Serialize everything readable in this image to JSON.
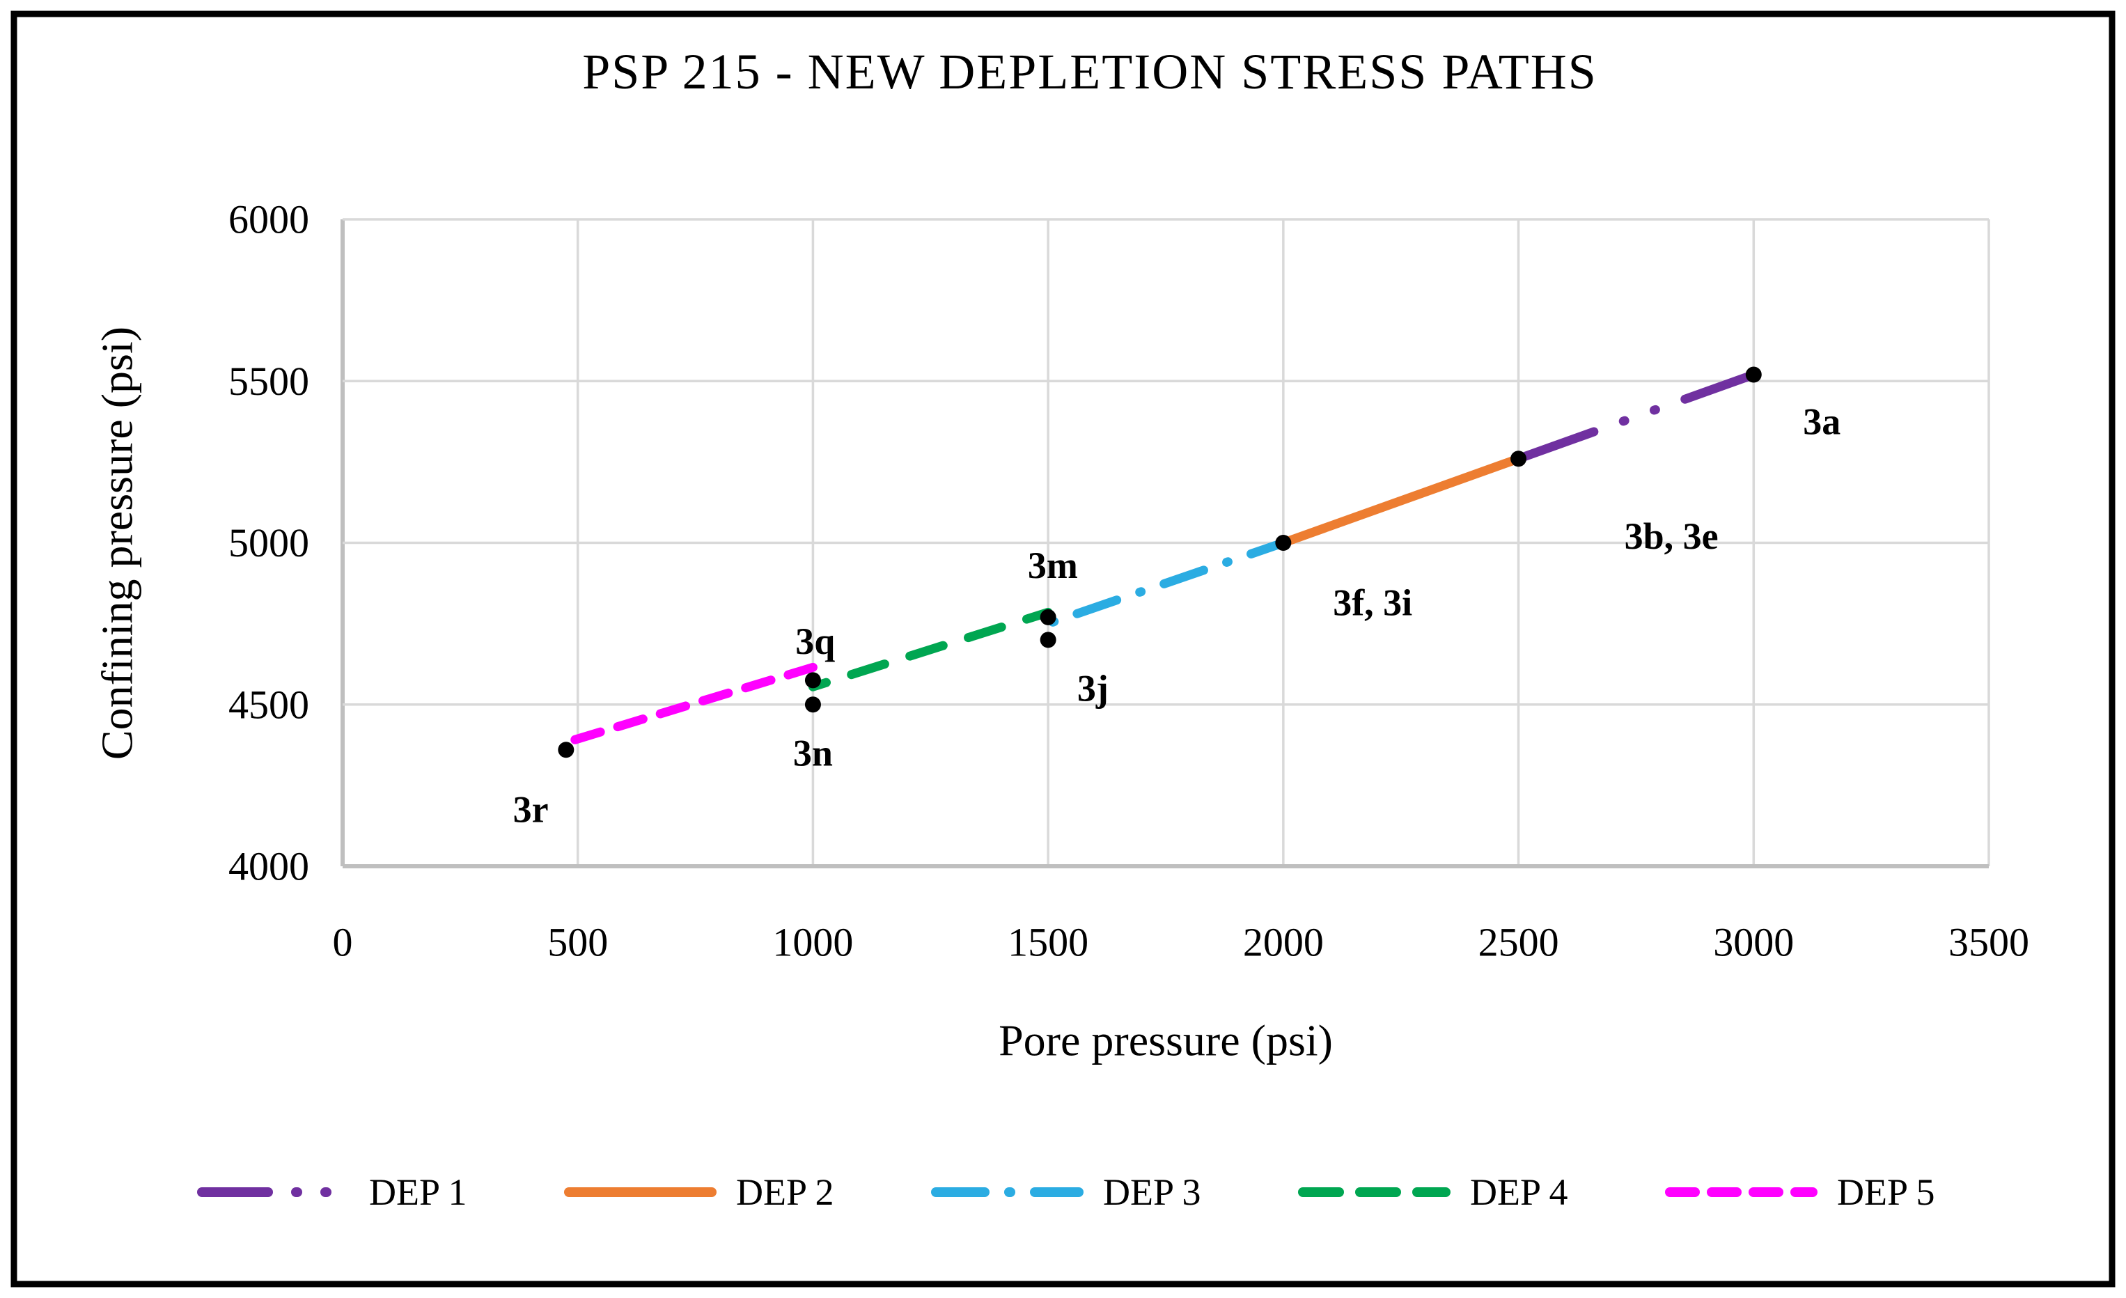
{
  "figure": {
    "background_color": "#FFFFFF",
    "frame_border_color": "#000000"
  },
  "chart_data": {
    "type": "line",
    "title": "PSP 215 - NEW DEPLETION STRESS PATHS",
    "xlabel": "Pore pressure (psi)",
    "ylabel": "Confining pressure (psi)",
    "xlim": [
      0,
      3500
    ],
    "ylim": [
      4000,
      6000
    ],
    "x_ticks": [
      0,
      500,
      1000,
      1500,
      2000,
      2500,
      3000,
      3500
    ],
    "y_ticks": [
      4000,
      4500,
      5000,
      5500,
      6000
    ],
    "grid": true,
    "grid_color": "#D9D9D9",
    "axis_line_color": "#BFBFBF",
    "marker_color": "#000000",
    "legend_position": "bottom",
    "series": [
      {
        "name": "DEP 1",
        "color": "#7030A0",
        "dash_style": "long-dash-dot-dot",
        "points": [
          [
            2500,
            5260
          ],
          [
            3000,
            5520
          ]
        ]
      },
      {
        "name": "DEP 2",
        "color": "#ED7D31",
        "dash_style": "solid",
        "points": [
          [
            2000,
            5000
          ],
          [
            2500,
            5260
          ]
        ]
      },
      {
        "name": "DEP 3",
        "color": "#2BACE2",
        "dash_style": "dash-dot",
        "points": [
          [
            1510,
            4755
          ],
          [
            2000,
            5000
          ]
        ]
      },
      {
        "name": "DEP 4",
        "color": "#00A651",
        "dash_style": "long-dash",
        "points": [
          [
            1000,
            4555
          ],
          [
            1500,
            4785
          ]
        ]
      },
      {
        "name": "DEP 5",
        "color": "#FF00FF",
        "dash_style": "short-dash",
        "points": [
          [
            480,
            4385
          ],
          [
            1000,
            4615
          ]
        ]
      }
    ],
    "point_markers": [
      {
        "label": "3a",
        "x": 3000,
        "y": 5520,
        "label_x": 3145,
        "label_y": 5375
      },
      {
        "label": "3b, 3e",
        "x": 2500,
        "y": 5260,
        "label_x": 2825,
        "label_y": 5020
      },
      {
        "label": "3f, 3i",
        "x": 2000,
        "y": 5000,
        "label_x": 2190,
        "label_y": 4815
      },
      {
        "label": "3m",
        "x": 1500,
        "y": 4770,
        "label_x": 1510,
        "label_y": 4930
      },
      {
        "label": "3j",
        "x": 1500,
        "y": 4700,
        "label_x": 1595,
        "label_y": 4550
      },
      {
        "label": "3q",
        "x": 1000,
        "y": 4575,
        "label_x": 1005,
        "label_y": 4695
      },
      {
        "label": "3n",
        "x": 1000,
        "y": 4500,
        "label_x": 1000,
        "label_y": 4350
      },
      {
        "label": "3r",
        "x": 475,
        "y": 4360,
        "label_x": 400,
        "label_y": 4175
      }
    ]
  }
}
